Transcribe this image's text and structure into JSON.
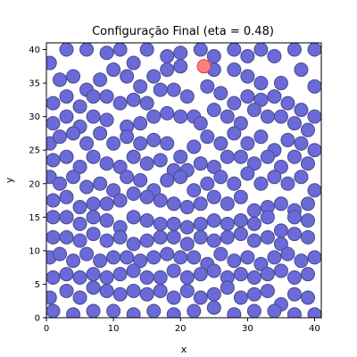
{
  "chart_data": {
    "type": "scatter",
    "title": "Configuração Final (eta = 0.48)",
    "xlabel": "x",
    "ylabel": "y",
    "xlim": [
      0,
      41
    ],
    "ylim": [
      0,
      41
    ],
    "xticks": [
      0,
      10,
      20,
      30,
      40
    ],
    "yticks": [
      0,
      5,
      10,
      15,
      20,
      25,
      30,
      35,
      40
    ],
    "xtick_labels": [
      "0",
      "10",
      "20",
      "30",
      "40"
    ],
    "ytick_labels": [
      "0",
      "5",
      "10",
      "15",
      "20",
      "25",
      "30",
      "35",
      "40"
    ],
    "grid": false,
    "particle_radius": 1.0,
    "series": [
      {
        "color": "#6a6ad8",
        "edge_color": "#4a4a8a",
        "points": [
          [
            0.5,
            38
          ],
          [
            3,
            40
          ],
          [
            6,
            40
          ],
          [
            9,
            39.5
          ],
          [
            11,
            40
          ],
          [
            13,
            38
          ],
          [
            15,
            40
          ],
          [
            18,
            39
          ],
          [
            20,
            39.5
          ],
          [
            23,
            40
          ],
          [
            25,
            39
          ],
          [
            28,
            40
          ],
          [
            30,
            39
          ],
          [
            32,
            40
          ],
          [
            34,
            39
          ],
          [
            37,
            40
          ],
          [
            40,
            40
          ],
          [
            2,
            35.5
          ],
          [
            4,
            36
          ],
          [
            6,
            34
          ],
          [
            8,
            35.5
          ],
          [
            10,
            37
          ],
          [
            12,
            36
          ],
          [
            14,
            34.5
          ],
          [
            16,
            36
          ],
          [
            18,
            37
          ],
          [
            20,
            37.5
          ],
          [
            25,
            37
          ],
          [
            28,
            37
          ],
          [
            30,
            36
          ],
          [
            32,
            35
          ],
          [
            35,
            35
          ],
          [
            38,
            37
          ],
          [
            40,
            34.5
          ],
          [
            1,
            32
          ],
          [
            3,
            33
          ],
          [
            5,
            31.5
          ],
          [
            7,
            33
          ],
          [
            9,
            33
          ],
          [
            11,
            32
          ],
          [
            13,
            32.5
          ],
          [
            15,
            32
          ],
          [
            17,
            34
          ],
          [
            19,
            34
          ],
          [
            21,
            33
          ],
          [
            22,
            30
          ],
          [
            24,
            34.5
          ],
          [
            26,
            33.5
          ],
          [
            28,
            32
          ],
          [
            30,
            33
          ],
          [
            32,
            32.5
          ],
          [
            34,
            33
          ],
          [
            36,
            32
          ],
          [
            38,
            31
          ],
          [
            40,
            30
          ],
          [
            1,
            29
          ],
          [
            3,
            30
          ],
          [
            5,
            28.5
          ],
          [
            7,
            30
          ],
          [
            9,
            29.5
          ],
          [
            12,
            28.5
          ],
          [
            14,
            29
          ],
          [
            16,
            30
          ],
          [
            18,
            30.5
          ],
          [
            20,
            30
          ],
          [
            23,
            29
          ],
          [
            25,
            31
          ],
          [
            27,
            30
          ],
          [
            29,
            29
          ],
          [
            31,
            31
          ],
          [
            33,
            30
          ],
          [
            35,
            30
          ],
          [
            37,
            29
          ],
          [
            39,
            28
          ],
          [
            0.5,
            26
          ],
          [
            2,
            27
          ],
          [
            4,
            27.5
          ],
          [
            6,
            26
          ],
          [
            8,
            27.5
          ],
          [
            10,
            26
          ],
          [
            12,
            27
          ],
          [
            14,
            26
          ],
          [
            16,
            26.5
          ],
          [
            18,
            26
          ],
          [
            20,
            24
          ],
          [
            22,
            25.5
          ],
          [
            24,
            27
          ],
          [
            26,
            26
          ],
          [
            28,
            27.5
          ],
          [
            30,
            26
          ],
          [
            32,
            27
          ],
          [
            34,
            25
          ],
          [
            36,
            26.5
          ],
          [
            38,
            26
          ],
          [
            40,
            25
          ],
          [
            1,
            23.5
          ],
          [
            3,
            24
          ],
          [
            5,
            22.5
          ],
          [
            7,
            24
          ],
          [
            9,
            23
          ],
          [
            11,
            22.5
          ],
          [
            13,
            24
          ],
          [
            15,
            23
          ],
          [
            17,
            23.5
          ],
          [
            19,
            22
          ],
          [
            21,
            22
          ],
          [
            23,
            23
          ],
          [
            25,
            22.5
          ],
          [
            27,
            24
          ],
          [
            29,
            24
          ],
          [
            31,
            23
          ],
          [
            33,
            24
          ],
          [
            35,
            22.5
          ],
          [
            37,
            24
          ],
          [
            39,
            23
          ],
          [
            0.5,
            21
          ],
          [
            2,
            20
          ],
          [
            4,
            21
          ],
          [
            6,
            19.5
          ],
          [
            8,
            20
          ],
          [
            10,
            19
          ],
          [
            12,
            21
          ],
          [
            14,
            20.5
          ],
          [
            16,
            19
          ],
          [
            18,
            20.5
          ],
          [
            20,
            21
          ],
          [
            22,
            19
          ],
          [
            24,
            20
          ],
          [
            26,
            21
          ],
          [
            28,
            20
          ],
          [
            30,
            21.5
          ],
          [
            32,
            20
          ],
          [
            34,
            21
          ],
          [
            36,
            20
          ],
          [
            38,
            21
          ],
          [
            40,
            19
          ],
          [
            1,
            17.5
          ],
          [
            3,
            18
          ],
          [
            5,
            16.5
          ],
          [
            7,
            17
          ],
          [
            9,
            17
          ],
          [
            11,
            17.5
          ],
          [
            13,
            18.5
          ],
          [
            15,
            18
          ],
          [
            17,
            17.5
          ],
          [
            19,
            17
          ],
          [
            21,
            16.5
          ],
          [
            23,
            17
          ],
          [
            25,
            18
          ],
          [
            27,
            17
          ],
          [
            29,
            18
          ],
          [
            31,
            16
          ],
          [
            33,
            16.5
          ],
          [
            35,
            17
          ],
          [
            37,
            16
          ],
          [
            39,
            17
          ],
          [
            1,
            15
          ],
          [
            3,
            15
          ],
          [
            5,
            14
          ],
          [
            7,
            15
          ],
          [
            9,
            14.5
          ],
          [
            11,
            13.5
          ],
          [
            13,
            15
          ],
          [
            15,
            14.5
          ],
          [
            17,
            14
          ],
          [
            19,
            14
          ],
          [
            21,
            13.5
          ],
          [
            23,
            14
          ],
          [
            25,
            14.5
          ],
          [
            27,
            14
          ],
          [
            29,
            14.5
          ],
          [
            31,
            14
          ],
          [
            33,
            15
          ],
          [
            35,
            13
          ],
          [
            37,
            15
          ],
          [
            39,
            14.5
          ],
          [
            1,
            12
          ],
          [
            3,
            12
          ],
          [
            5,
            11.5
          ],
          [
            7,
            12.5
          ],
          [
            9,
            11.5
          ],
          [
            11,
            12
          ],
          [
            13,
            11
          ],
          [
            15,
            11.5
          ],
          [
            17,
            12
          ],
          [
            19,
            12
          ],
          [
            21,
            11
          ],
          [
            23,
            12
          ],
          [
            25,
            11.5
          ],
          [
            27,
            12
          ],
          [
            29,
            12.5
          ],
          [
            31,
            11.5
          ],
          [
            33,
            12
          ],
          [
            35,
            11
          ],
          [
            37,
            12.5
          ],
          [
            39,
            12
          ],
          [
            0.5,
            9
          ],
          [
            2,
            9.5
          ],
          [
            4,
            8.5
          ],
          [
            6,
            9.5
          ],
          [
            8,
            8.5
          ],
          [
            10,
            9
          ],
          [
            12,
            9
          ],
          [
            14,
            8.5
          ],
          [
            16,
            9
          ],
          [
            18,
            9.5
          ],
          [
            20,
            9
          ],
          [
            22,
            9
          ],
          [
            24,
            8
          ],
          [
            26,
            9.5
          ],
          [
            28,
            8.5
          ],
          [
            30,
            9
          ],
          [
            32,
            8
          ],
          [
            34,
            9
          ],
          [
            36,
            9.5
          ],
          [
            38,
            8.5
          ],
          [
            40,
            9
          ],
          [
            1,
            6
          ],
          [
            3,
            6.5
          ],
          [
            5,
            6
          ],
          [
            7,
            6.5
          ],
          [
            9,
            6
          ],
          [
            11,
            6.5
          ],
          [
            13,
            7
          ],
          [
            15,
            6
          ],
          [
            17,
            6
          ],
          [
            19,
            7
          ],
          [
            21,
            6
          ],
          [
            23,
            6.5
          ],
          [
            25,
            7
          ],
          [
            27,
            6
          ],
          [
            29,
            6.5
          ],
          [
            31,
            6
          ],
          [
            33,
            6.5
          ],
          [
            35,
            7
          ],
          [
            37,
            6
          ],
          [
            39,
            6.5
          ],
          [
            0.5,
            3
          ],
          [
            3,
            4
          ],
          [
            5,
            3
          ],
          [
            7,
            4.5
          ],
          [
            9,
            4
          ],
          [
            11,
            3.5
          ],
          [
            13,
            4
          ],
          [
            15,
            3.5
          ],
          [
            17,
            4
          ],
          [
            19,
            3
          ],
          [
            21,
            4
          ],
          [
            23,
            3
          ],
          [
            25,
            3.5
          ],
          [
            27,
            4.5
          ],
          [
            29,
            3
          ],
          [
            31,
            3.5
          ],
          [
            33,
            4
          ],
          [
            35,
            2
          ],
          [
            37,
            3.5
          ],
          [
            39,
            3
          ],
          [
            1,
            1
          ],
          [
            4,
            0.5
          ],
          [
            7,
            1
          ],
          [
            10,
            1
          ],
          [
            13,
            0.5
          ],
          [
            16,
            1
          ],
          [
            19,
            0.5
          ],
          [
            22,
            1
          ],
          [
            25,
            1.5
          ],
          [
            28,
            0.5
          ],
          [
            31,
            1
          ],
          [
            34,
            1
          ],
          [
            37,
            0.5
          ],
          [
            40,
            0.5
          ]
        ]
      },
      {
        "color": "#ff7f7f",
        "edge_color": "#d04040",
        "points": [
          [
            23.5,
            37.5
          ]
        ]
      }
    ]
  }
}
